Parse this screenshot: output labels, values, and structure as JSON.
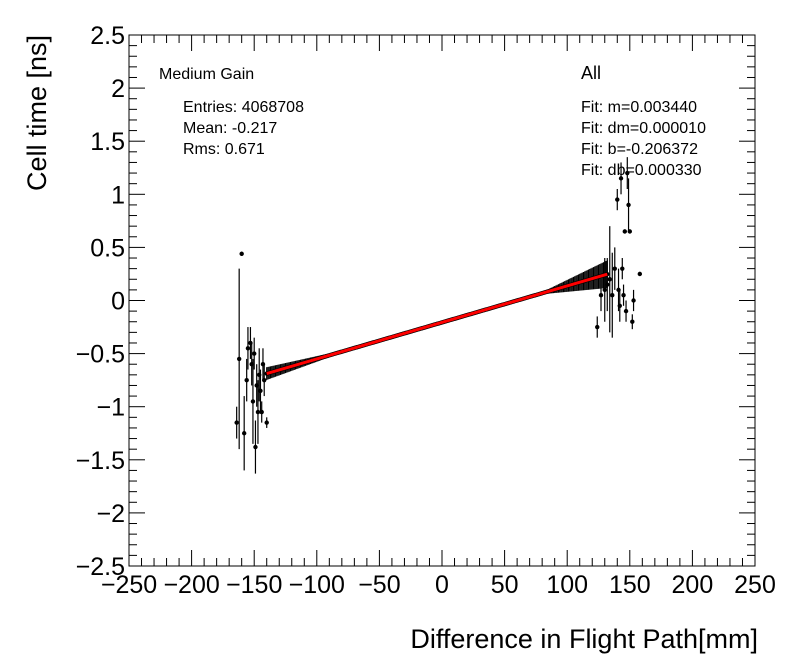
{
  "chart_data": {
    "type": "scatter",
    "title": "",
    "xlabel": "Difference in Flight Path[mm]",
    "ylabel": "Cell time [ns]",
    "xlim": [
      -250,
      250
    ],
    "ylim": [
      -2.5,
      2.5
    ],
    "x_ticks": [
      -250,
      -200,
      -150,
      -100,
      -50,
      0,
      50,
      100,
      150,
      200,
      250
    ],
    "x_tick_labels": [
      "−250",
      "−200",
      "−150",
      "−100",
      "−50",
      "0",
      "50",
      "100",
      "150",
      "200",
      "250"
    ],
    "y_ticks": [
      -2.5,
      -2,
      -1.5,
      -1,
      -0.5,
      0,
      0.5,
      1,
      1.5,
      2,
      2.5
    ],
    "y_tick_labels": [
      "−2.5",
      "−2",
      "−1.5",
      "−1",
      "−0.5",
      "0",
      "0.5",
      "1",
      "1.5",
      "2",
      "2.5"
    ],
    "grid": false,
    "gain_label": "Medium Gain",
    "stats": {
      "entries": "Entries: 4068708",
      "mean": "Mean: -0.217",
      "rms": "Rms: 0.671"
    },
    "category_label": "All",
    "fit_text": [
      "Fit: m=0.003440",
      "Fit: dm=0.000010",
      "Fit: b=-0.206372",
      "Fit: db=0.000330"
    ],
    "fit": {
      "m": 0.00344,
      "b": -0.206372,
      "x_range": [
        -140,
        132
      ],
      "color": "#ff0000"
    },
    "series": [
      {
        "name": "profile-dense",
        "x_range": [
          -140,
          132
        ],
        "x_step": 1,
        "slope": 0.00344,
        "intercept": -0.206372,
        "err_left": 0.05,
        "err_right": 0.12,
        "err_mid": 0.01,
        "color": "#000000"
      },
      {
        "name": "profile-sparse",
        "color": "#000000",
        "points": [
          {
            "x": -164,
            "y": -1.15,
            "err": 0.15
          },
          {
            "x": -162,
            "y": -0.55,
            "err": 0.85
          },
          {
            "x": -160,
            "y": 0.44,
            "err": 0.02
          },
          {
            "x": -158,
            "y": -1.25,
            "err": 0.35
          },
          {
            "x": -156,
            "y": -0.75,
            "err": 0.2
          },
          {
            "x": -155,
            "y": -0.45,
            "err": 0.2
          },
          {
            "x": -153,
            "y": -0.4,
            "err": 0.15
          },
          {
            "x": -152,
            "y": -0.6,
            "err": 0.2
          },
          {
            "x": -151,
            "y": -0.95,
            "err": 0.4
          },
          {
            "x": -150,
            "y": -0.5,
            "err": 0.15
          },
          {
            "x": -149,
            "y": -1.38,
            "err": 0.25
          },
          {
            "x": -148,
            "y": -0.8,
            "err": 0.2
          },
          {
            "x": -147,
            "y": -1.05,
            "err": 0.3
          },
          {
            "x": -146,
            "y": -0.7,
            "err": 0.25
          },
          {
            "x": -145,
            "y": -0.85,
            "err": 0.2
          },
          {
            "x": -144,
            "y": -1.05,
            "err": 0.1
          },
          {
            "x": -143,
            "y": -0.6,
            "err": 0.15
          },
          {
            "x": -142,
            "y": -0.75,
            "err": 0.15
          },
          {
            "x": -140,
            "y": -1.15,
            "err": 0.05
          },
          {
            "x": 124,
            "y": -0.25,
            "err": 0.1
          },
          {
            "x": 127,
            "y": 0.05,
            "err": 0.15
          },
          {
            "x": 130,
            "y": 0.1,
            "err": 0.3
          },
          {
            "x": 132,
            "y": 0.15,
            "err": 0.25
          },
          {
            "x": 134,
            "y": 0.2,
            "err": 0.5
          },
          {
            "x": 136,
            "y": 0.05,
            "err": 0.4
          },
          {
            "x": 138,
            "y": 0.3,
            "err": 0.2
          },
          {
            "x": 140,
            "y": 0.95,
            "err": 0.1
          },
          {
            "x": 141,
            "y": 0.1,
            "err": 0.2
          },
          {
            "x": 142,
            "y": -0.05,
            "err": 0.15
          },
          {
            "x": 143,
            "y": 1.15,
            "err": 0.15
          },
          {
            "x": 144,
            "y": 0.3,
            "err": 0.1
          },
          {
            "x": 145,
            "y": 0.05,
            "err": 0.1
          },
          {
            "x": 146,
            "y": 0.65,
            "err": 0.02
          },
          {
            "x": 147,
            "y": -0.1,
            "err": 0.1
          },
          {
            "x": 148,
            "y": 1.2,
            "err": 0.15
          },
          {
            "x": 149,
            "y": 0.9,
            "err": 0.25
          },
          {
            "x": 150,
            "y": 0.65,
            "err": 0.02
          },
          {
            "x": 152,
            "y": -0.2,
            "err": 0.07
          },
          {
            "x": 153,
            "y": 0.0,
            "err": 0.1
          },
          {
            "x": 158,
            "y": 0.25,
            "err": 0.02
          }
        ]
      }
    ]
  }
}
